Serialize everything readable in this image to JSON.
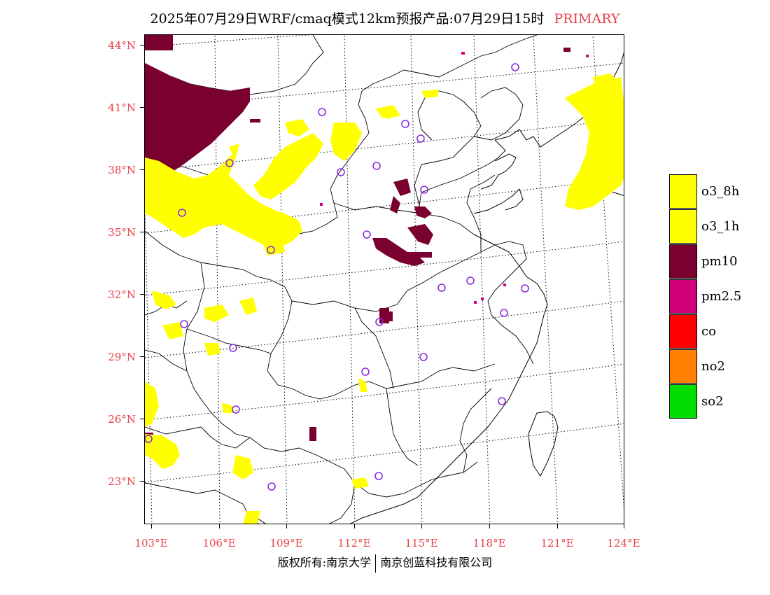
{
  "title": {
    "text": "2025年07月29日WRF/cmaq模式12km预报产品:07月29日15时",
    "primary": "PRIMARY"
  },
  "latitude_labels": [
    "44°N",
    "41°N",
    "38°N",
    "35°N",
    "32°N",
    "29°N",
    "26°N",
    "23°N"
  ],
  "longitude_labels": [
    "103°E",
    "106°E",
    "109°E",
    "112°E",
    "115°E",
    "118°E",
    "121°E",
    "124°E"
  ],
  "legend": [
    {
      "label": "o3_8h",
      "color": "#ffff00"
    },
    {
      "label": "o3_1h",
      "color": "#ffff00"
    },
    {
      "label": "pm10",
      "color": "#7a0030"
    },
    {
      "label": "pm2.5",
      "color": "#d0007a"
    },
    {
      "label": "co",
      "color": "#ff0000"
    },
    {
      "label": "no2",
      "color": "#ff8000"
    },
    {
      "label": "so2",
      "color": "#00dd00"
    }
  ],
  "footer": {
    "left": "版权所有:南京大学",
    "right": "南京创蓝科技有限公司"
  },
  "colors": {
    "label_red": "#e8414a",
    "o3": "#ffff00",
    "pm10": "#7a0030",
    "pm25": "#d0007a",
    "station": "#8a2be2"
  }
}
